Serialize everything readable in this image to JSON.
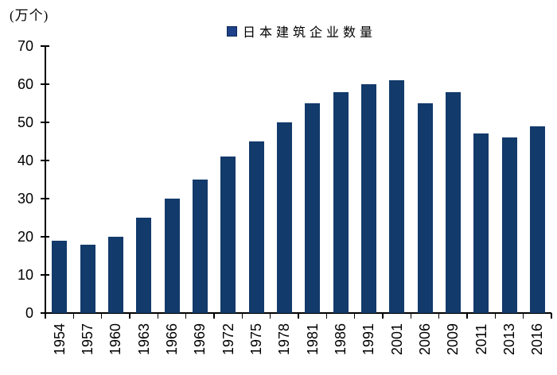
{
  "chart": {
    "unit_label": "(万个)",
    "legend_label": "日本建筑企业数量"
  },
  "colors": {
    "bar": "#123A6B",
    "legend_swatch": "#1F4189",
    "axis": "#000000",
    "background": "#FFFFFF",
    "text": "#000000"
  },
  "chart_data": {
    "type": "bar",
    "title": "",
    "unit": "万个",
    "legend": [
      "日本建筑企业数量"
    ],
    "legend_position": "top-center",
    "categories": [
      "1954",
      "1957",
      "1960",
      "1963",
      "1966",
      "1969",
      "1972",
      "1975",
      "1978",
      "1981",
      "1986",
      "1991",
      "2001",
      "2006",
      "2009",
      "2011",
      "2013",
      "2016"
    ],
    "values": [
      19,
      18,
      20,
      25,
      30,
      35,
      41,
      45,
      50,
      55,
      58,
      60,
      61,
      55,
      58,
      47,
      46,
      49
    ],
    "xlabel": "",
    "ylabel": "(万个)",
    "ylim": [
      0,
      70
    ],
    "ytick_step": 10,
    "yticks": [
      0,
      10,
      20,
      30,
      40,
      50,
      60,
      70
    ],
    "grid": false,
    "x_label_rotation": -90
  }
}
